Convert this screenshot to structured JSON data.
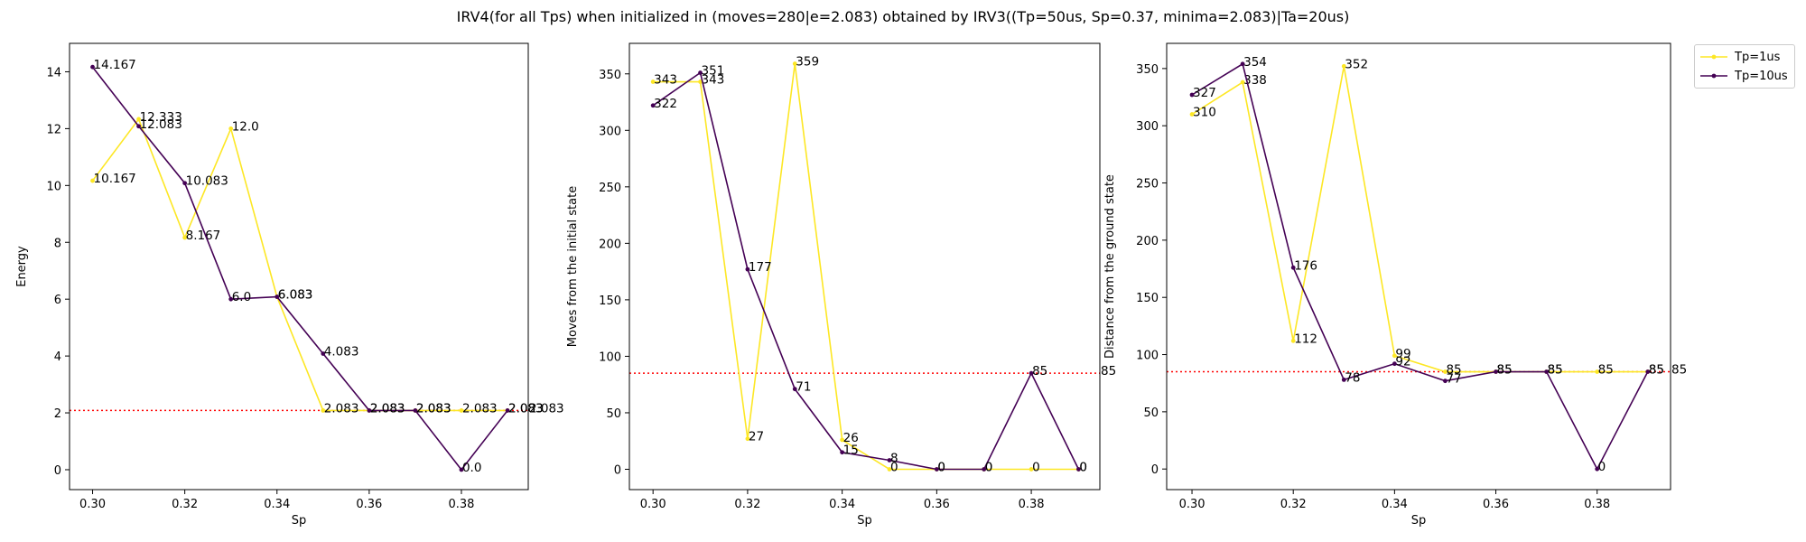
{
  "figure": {
    "title": "IRV4(for all Tps) when initialized in (moves=280|e=2.083) obtained by IRV3((Tp=50us, Sp=0.37, minima=2.083)|Ta=20us)"
  },
  "colors": {
    "tp1": "#fde725",
    "tp10": "#440154",
    "ref": "#ff0000"
  },
  "legend": {
    "placement": "outside-top-right",
    "items": [
      {
        "label": "Tp=1us",
        "color": "#fde725"
      },
      {
        "label": "Tp=10us",
        "color": "#440154"
      }
    ]
  },
  "chart_data": [
    {
      "type": "line",
      "xlabel": "Sp",
      "ylabel": "Energy",
      "x": [
        0.3,
        0.31,
        0.32,
        0.33,
        0.34,
        0.35,
        0.36,
        0.37,
        0.38,
        0.39
      ],
      "xlim": [
        0.295,
        0.3945
      ],
      "ylim": [
        -0.7,
        15
      ],
      "xticks": [
        "0.30",
        "0.32",
        "0.34",
        "0.36",
        "0.38"
      ],
      "yticks": [
        "0",
        "2",
        "4",
        "6",
        "8",
        "10",
        "12",
        "14"
      ],
      "reference_line": {
        "y": 2.083,
        "label": "2.083"
      },
      "series": [
        {
          "name": "Tp=1us",
          "values": [
            10.167,
            12.333,
            8.167,
            12.0,
            6.083,
            2.083,
            2.083,
            2.083,
            2.083,
            2.083
          ],
          "labels": [
            "10.167",
            "12.333",
            "8.167",
            "12.0",
            "6.083",
            "2.083",
            "2.083",
            "2.083",
            "2.083",
            "2.083"
          ]
        },
        {
          "name": "Tp=10us",
          "values": [
            14.167,
            12.083,
            10.083,
            6.0,
            6.083,
            4.083,
            2.083,
            2.083,
            0.0,
            2.083
          ],
          "labels": [
            "14.167",
            "12.083",
            "10.083",
            "6.0",
            "6.083",
            "4.083",
            "2.083",
            "2.083",
            "0.0",
            "2.083"
          ]
        }
      ]
    },
    {
      "type": "line",
      "xlabel": "Sp",
      "ylabel": "Moves from the initial state",
      "x": [
        0.3,
        0.31,
        0.32,
        0.33,
        0.34,
        0.35,
        0.36,
        0.37,
        0.38,
        0.39
      ],
      "xlim": [
        0.295,
        0.3945
      ],
      "ylim": [
        -18,
        377
      ],
      "xticks": [
        "0.30",
        "0.32",
        "0.34",
        "0.36",
        "0.38"
      ],
      "yticks": [
        "0",
        "50",
        "100",
        "150",
        "200",
        "250",
        "300",
        "350"
      ],
      "reference_line": {
        "y": 85,
        "label": "85"
      },
      "series": [
        {
          "name": "Tp=1us",
          "values": [
            343,
            343,
            27,
            359,
            26,
            0,
            0,
            0,
            0,
            0
          ],
          "labels": [
            "343",
            "343",
            "27",
            "359",
            "26",
            "0",
            "0",
            "0",
            "0",
            "0"
          ]
        },
        {
          "name": "Tp=10us",
          "values": [
            322,
            351,
            177,
            71,
            15,
            8,
            0,
            0,
            85,
            0
          ],
          "labels": [
            "322",
            "351",
            "177",
            "71",
            "15",
            "8",
            "0",
            "0",
            "85",
            "0"
          ]
        }
      ]
    },
    {
      "type": "line",
      "xlabel": "Sp",
      "ylabel": "Distance from the ground state",
      "x": [
        0.3,
        0.31,
        0.32,
        0.33,
        0.34,
        0.35,
        0.36,
        0.37,
        0.38,
        0.39
      ],
      "xlim": [
        0.295,
        0.3945
      ],
      "ylim": [
        -18,
        372
      ],
      "xticks": [
        "0.30",
        "0.32",
        "0.34",
        "0.36",
        "0.38"
      ],
      "yticks": [
        "0",
        "50",
        "100",
        "150",
        "200",
        "250",
        "300",
        "350"
      ],
      "reference_line": {
        "y": 85,
        "label": "85"
      },
      "series": [
        {
          "name": "Tp=1us",
          "values": [
            310,
            338,
            112,
            352,
            99,
            85,
            85,
            85,
            85,
            85
          ],
          "labels": [
            "310",
            "338",
            "112",
            "352",
            "99",
            "85",
            "85",
            "85",
            "85",
            "85"
          ]
        },
        {
          "name": "Tp=10us",
          "values": [
            327,
            354,
            176,
            78,
            92,
            77,
            85,
            85,
            0,
            85
          ],
          "labels": [
            "327",
            "354",
            "176",
            "78",
            "92",
            "77",
            "85",
            "85",
            "0",
            "85"
          ]
        }
      ]
    }
  ]
}
